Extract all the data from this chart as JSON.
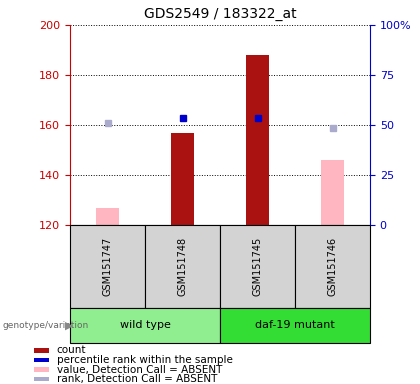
{
  "title": "GDS2549 / 183322_at",
  "samples": [
    "GSM151747",
    "GSM151748",
    "GSM151745",
    "GSM151746"
  ],
  "groups": [
    {
      "label": "wild type",
      "color": "#90EE90",
      "samples": [
        0,
        1
      ]
    },
    {
      "label": "daf-19 mutant",
      "color": "#33DD33",
      "samples": [
        2,
        3
      ]
    }
  ],
  "count_values": [
    null,
    157,
    188,
    null
  ],
  "count_color": "#AA1111",
  "percentile_values": [
    null,
    163,
    163,
    null
  ],
  "percentile_color": "#0000CC",
  "absent_value": [
    127,
    null,
    null,
    146
  ],
  "absent_value_color": "#FFB6C1",
  "absent_rank": [
    161,
    null,
    null,
    159
  ],
  "absent_rank_color": "#AAAACC",
  "ylim_left": [
    120,
    200
  ],
  "ylim_right": [
    0,
    100
  ],
  "yticks_left": [
    120,
    140,
    160,
    180,
    200
  ],
  "yticks_right": [
    0,
    25,
    50,
    75,
    100
  ],
  "ytick_labels_right": [
    "0",
    "25",
    "50",
    "75",
    "100%"
  ],
  "left_axis_color": "#CC0000",
  "right_axis_color": "#0000CC",
  "bar_width": 0.3,
  "legend_items": [
    {
      "label": "count",
      "color": "#AA1111"
    },
    {
      "label": "percentile rank within the sample",
      "color": "#0000CC"
    },
    {
      "label": "value, Detection Call = ABSENT",
      "color": "#FFB6C1"
    },
    {
      "label": "rank, Detection Call = ABSENT",
      "color": "#AAAACC"
    }
  ]
}
